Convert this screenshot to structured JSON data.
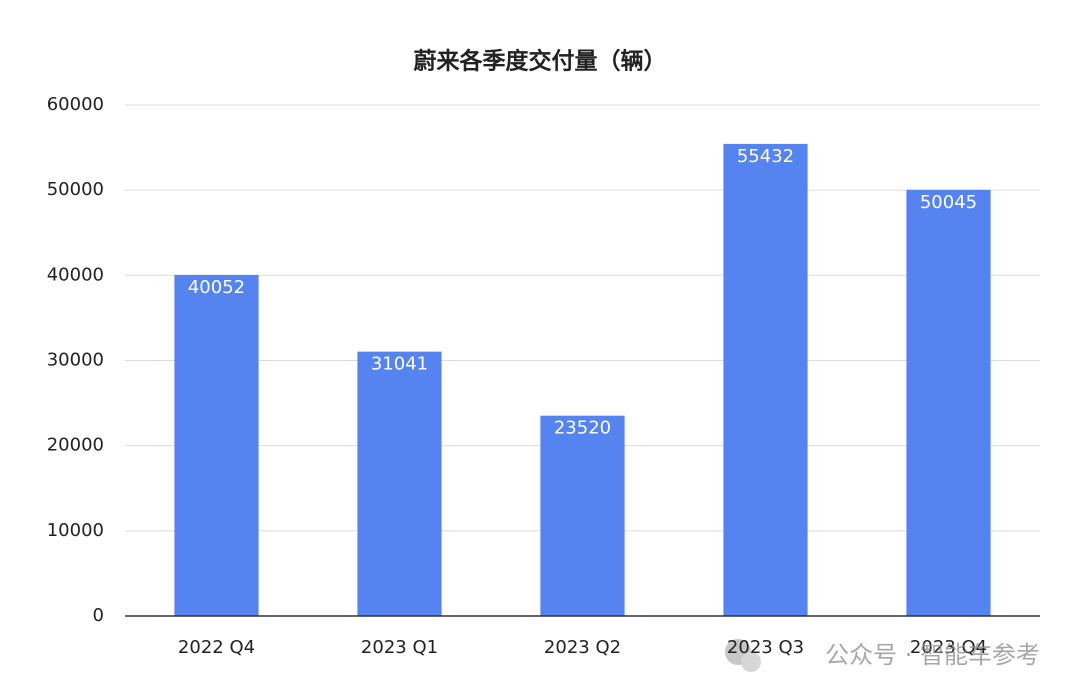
{
  "chart_data": {
    "type": "bar",
    "title": "蔚来各季度交付量（辆）",
    "categories": [
      "2022 Q4",
      "2023 Q1",
      "2023 Q2",
      "2023 Q3",
      "2023 Q4"
    ],
    "values": [
      40052,
      31041,
      23520,
      55432,
      50045
    ],
    "color": "#5584f0",
    "ylim": [
      0,
      60000
    ],
    "yticks": [
      0,
      10000,
      20000,
      30000,
      40000,
      50000,
      60000
    ],
    "grid": true,
    "watermark": "公众号 · 智能车参考"
  }
}
